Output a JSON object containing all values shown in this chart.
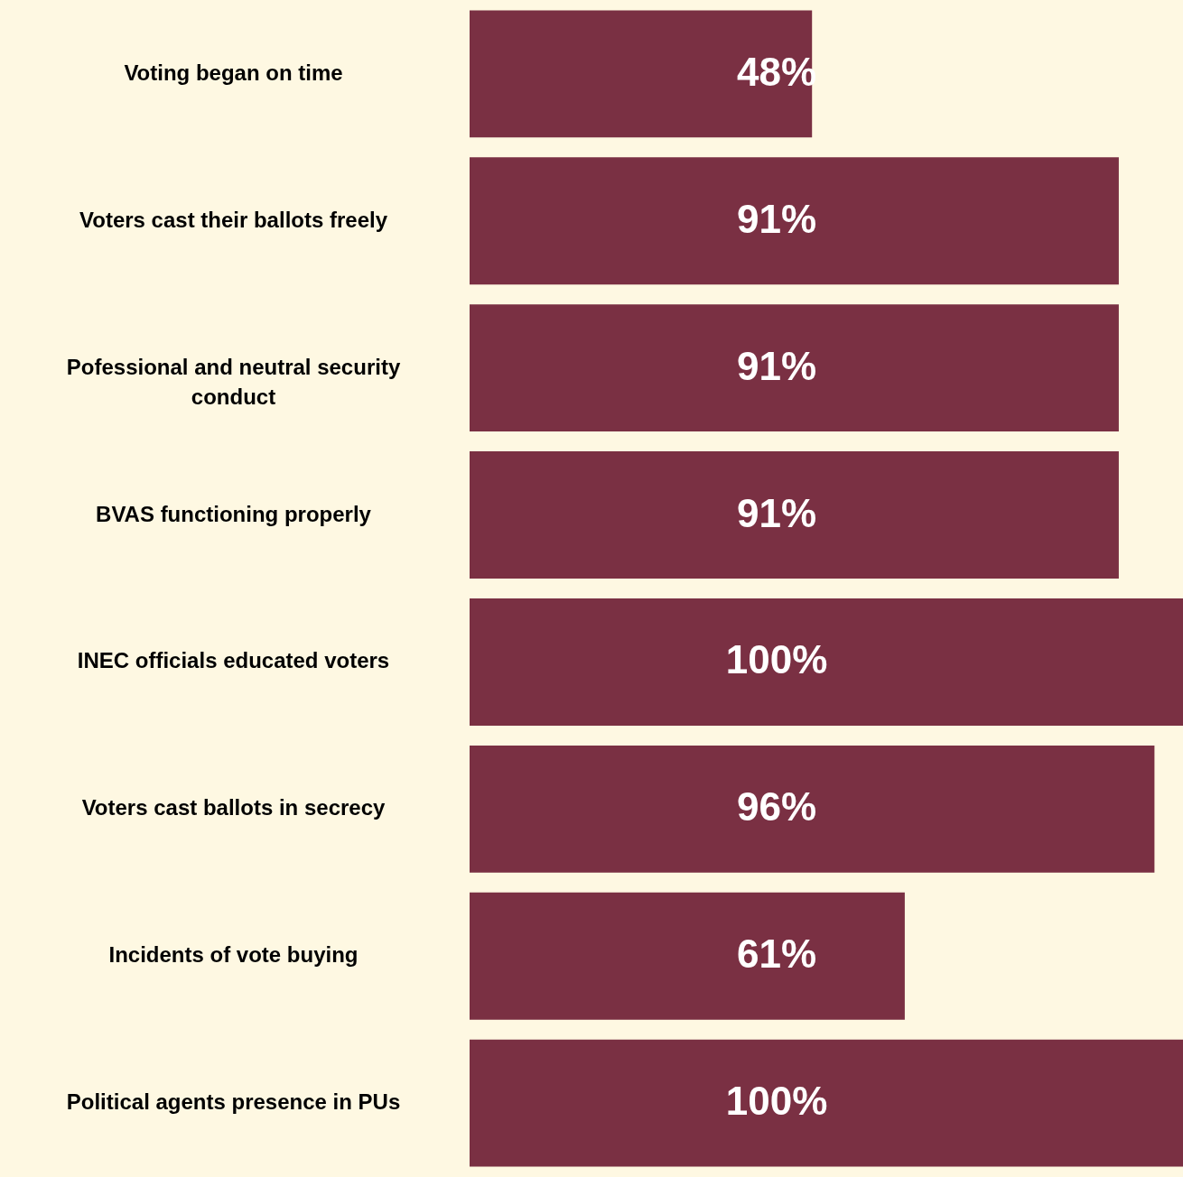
{
  "chart_data": {
    "type": "bar",
    "orientation": "horizontal",
    "categories": [
      "Voting began on time",
      "Voters cast their ballots freely",
      "Pofessional and neutral security conduct",
      "BVAS functioning properly",
      "INEC officials educated voters",
      "Voters cast ballots in secrecy",
      "Incidents of vote buying",
      "Political agents presence in PUs"
    ],
    "values": [
      48,
      91,
      91,
      91,
      100,
      96,
      61,
      100
    ],
    "value_labels": [
      "48%",
      "91%",
      "91%",
      "91%",
      "100%",
      "96%",
      "61%",
      "100%"
    ],
    "color": "#7a3043",
    "tick_labels": "y"
  }
}
